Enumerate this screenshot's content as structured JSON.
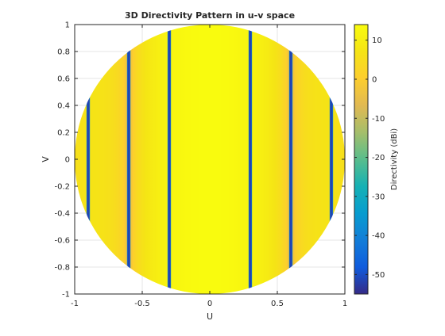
{
  "chart_data": {
    "type": "heatmap",
    "title": "3D Directivity Pattern in u-v space",
    "xlabel": "U",
    "ylabel": "V",
    "xlim": [
      -1,
      1
    ],
    "ylim": [
      -1,
      1
    ],
    "x_ticks": [
      "-1",
      "-0.5",
      "0",
      "0.5",
      "1"
    ],
    "x_tick_values": [
      -1,
      -0.5,
      0,
      0.5,
      1
    ],
    "y_ticks": [
      "1",
      "0.8",
      "0.6",
      "0.4",
      "0.2",
      "0",
      "-0.2",
      "-0.4",
      "-0.6",
      "-0.8",
      "-1"
    ],
    "y_tick_values": [
      1,
      0.8,
      0.6,
      0.4,
      0.2,
      0,
      -0.2,
      -0.4,
      -0.6,
      -0.8,
      -1
    ],
    "grid": true,
    "region": "unit circle u^2 + v^2 <= 1",
    "colorbar": {
      "label": "Directivity (dBi)",
      "clim": [
        -55,
        14
      ],
      "ticks": [
        "10",
        "0",
        "-10",
        "-20",
        "-30",
        "-40",
        "-50"
      ],
      "tick_values": [
        10,
        0,
        -10,
        -20,
        -30,
        -40,
        -50
      ],
      "colormap": "parula"
    },
    "pattern": {
      "varies_along": "U",
      "peak_dBi": 14,
      "null_dBi": -55,
      "null_u_positions": [
        -0.9,
        -0.6,
        -0.3,
        0.3,
        0.6,
        0.9
      ],
      "sidelobe_peak_dBi": -4
    }
  }
}
